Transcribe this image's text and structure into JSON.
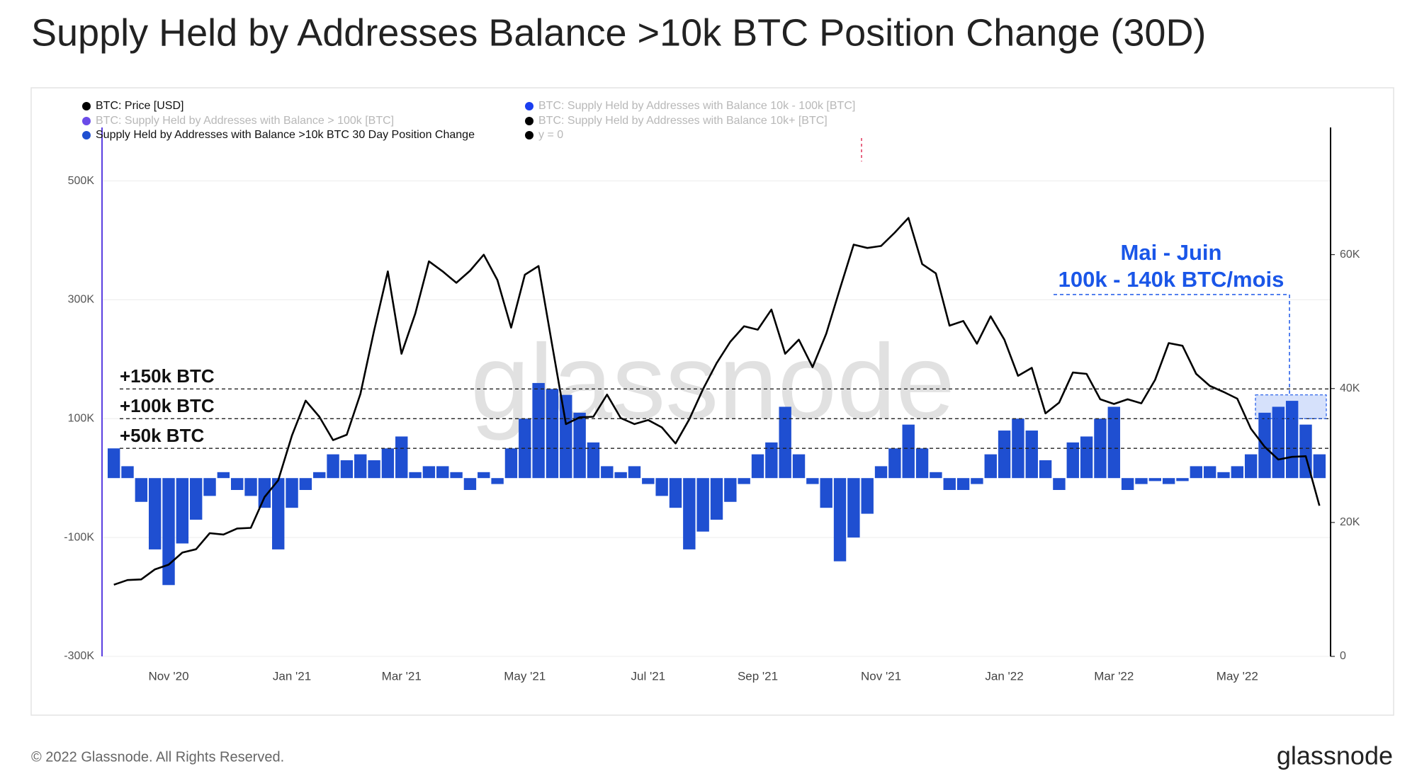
{
  "chart_data": {
    "type": "bar",
    "title": "Supply Held by Addresses Balance >10k BTC Position Change (30D)",
    "categories": [
      null,
      null,
      null,
      null,
      "Nov '20",
      null,
      null,
      null,
      null,
      null,
      null,
      null,
      null,
      "Jan '21",
      null,
      null,
      null,
      null,
      null,
      null,
      null,
      "Mar '21",
      null,
      null,
      null,
      null,
      null,
      null,
      null,
      null,
      "May '21",
      null,
      null,
      null,
      null,
      null,
      null,
      null,
      null,
      "Jul '21",
      null,
      null,
      null,
      null,
      null,
      null,
      null,
      "Sep '21",
      null,
      null,
      null,
      null,
      null,
      null,
      null,
      null,
      "Nov '21",
      null,
      null,
      null,
      null,
      null,
      null,
      null,
      null,
      "Jan '22",
      null,
      null,
      null,
      null,
      null,
      null,
      null,
      "Mar '22",
      null,
      null,
      null,
      null,
      null,
      null,
      null,
      null,
      "May '22",
      null,
      null,
      null,
      null,
      null,
      null
    ],
    "series": [
      {
        "name": "Supply Held by Addresses with Balance >10k BTC 30 Day Position Change",
        "color": "#1f4fd1",
        "type": "bar",
        "values": [
          50000,
          20000,
          -40000,
          -120000,
          -180000,
          -110000,
          -70000,
          -30000,
          10000,
          -20000,
          -30000,
          -50000,
          -120000,
          -50000,
          -20000,
          10000,
          40000,
          30000,
          40000,
          30000,
          50000,
          70000,
          10000,
          20000,
          20000,
          10000,
          -20000,
          10000,
          -10000,
          50000,
          100000,
          160000,
          150000,
          140000,
          110000,
          60000,
          20000,
          10000,
          20000,
          -10000,
          -30000,
          -50000,
          -120000,
          -90000,
          -70000,
          -40000,
          -10000,
          40000,
          60000,
          120000,
          40000,
          -10000,
          -50000,
          -140000,
          -100000,
          -60000,
          20000,
          50000,
          90000,
          50000,
          10000,
          -20000,
          -20000,
          -10000,
          40000,
          80000,
          100000,
          80000,
          30000,
          -20000,
          60000,
          70000,
          100000,
          120000,
          -20000,
          -10000,
          -5000,
          -10000,
          -5000,
          20000,
          20000,
          10000,
          20000,
          40000,
          110000,
          120000,
          130000,
          90000,
          40000
        ]
      },
      {
        "name": "BTC: Price [USD]",
        "color": "#000000",
        "type": "line",
        "axis": "y2",
        "values": [
          10700,
          11400,
          11500,
          13000,
          13700,
          15500,
          16000,
          18400,
          18200,
          19100,
          19200,
          23800,
          26300,
          33000,
          38200,
          35800,
          32300,
          33100,
          39200,
          48700,
          57500,
          45200,
          51200,
          59000,
          57500,
          55800,
          57600,
          60000,
          56200,
          49100,
          57000,
          58300,
          46400,
          34700,
          35700,
          35800,
          39100,
          35600,
          34700,
          35300,
          34200,
          31800,
          35400,
          39900,
          43800,
          47000,
          49300,
          48800,
          51800,
          45200,
          47300,
          43200,
          48200,
          54900,
          61500,
          61000,
          61300,
          63300,
          65500,
          58600,
          57200,
          49400,
          50100,
          46700,
          50800,
          47300,
          41900,
          43100,
          36300,
          37900,
          42400,
          42200,
          38400,
          37700,
          38400,
          37800,
          41300,
          46800,
          46400,
          42200,
          40400,
          39500,
          38500,
          34000,
          31300,
          29400,
          29800,
          29900,
          22500
        ]
      }
    ],
    "hidden_series": [
      {
        "name": "BTC: Supply Held by Addresses with Balance 10k - 100k [BTC]",
        "color": "#1a3ef0"
      },
      {
        "name": "BTC: Supply Held by Addresses with Balance > 100k [BTC]",
        "color": "#6a4be8"
      },
      {
        "name": "BTC: Supply Held by Addresses with Balance 10k+ [BTC]",
        "color": "#000000"
      },
      {
        "name": "y = 0",
        "color": "#000000"
      }
    ],
    "ylim": [
      -300000,
      590000
    ],
    "yticks": [
      {
        "value": -300000,
        "label": "-300K"
      },
      {
        "value": -100000,
        "label": "-100K"
      },
      {
        "value": 100000,
        "label": "100K"
      },
      {
        "value": 300000,
        "label": "300K"
      },
      {
        "value": 500000,
        "label": "500K"
      }
    ],
    "y2lim": [
      0,
      79000
    ],
    "y2ticks": [
      0,
      {
        "value": 20000,
        "label": "20K"
      },
      {
        "value": 40000,
        "label": "40K"
      },
      {
        "value": 60000,
        "label": "60K"
      }
    ],
    "reference_lines": [
      {
        "value": 150000,
        "label": "+150k BTC"
      },
      {
        "value": 100000,
        "label": "+100k BTC"
      },
      {
        "value": 50000,
        "label": "+50k BTC"
      }
    ],
    "annotation": {
      "title": "Mai - Juin",
      "text": "100k - 140k BTC/mois",
      "range": [
        100000,
        140000
      ],
      "color": "#1a56e8"
    },
    "watermark": "glassnode",
    "footer": "© 2022 Glassnode. All Rights Reserved.",
    "logo": "glassnode"
  }
}
